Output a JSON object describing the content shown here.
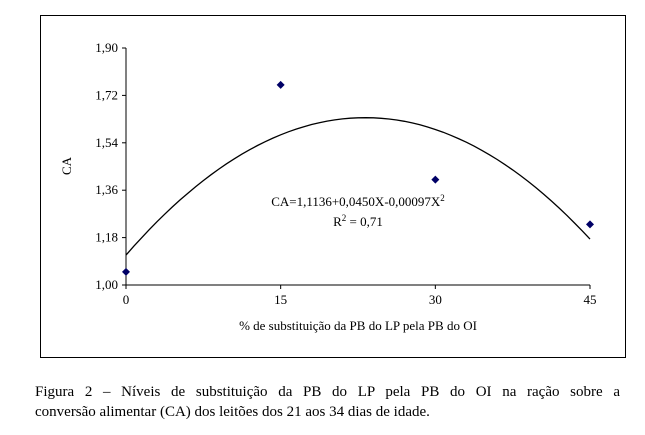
{
  "chart_data": {
    "type": "scatter",
    "x_label": "% de substituição da PB do LP pela PB do OI",
    "y_label": "CA",
    "x": [
      0,
      15,
      30,
      45
    ],
    "series": [
      {
        "color": "#000066",
        "values": [
          1.05,
          1.76,
          1.4,
          1.23
        ]
      }
    ],
    "fit": {
      "coefficients": [
        1.1136,
        0.045,
        -0.00097
      ],
      "color": "#000000"
    },
    "annotations": [
      {
        "parts": [
          "CA=1,1136+0,0450X-0,00097X",
          "2"
        ]
      },
      {
        "parts": [
          "R",
          "2",
          " = 0,71"
        ]
      }
    ],
    "xlim": [
      0,
      45
    ],
    "xticks": [
      0,
      15,
      30,
      45
    ],
    "ylim": [
      1.0,
      1.9
    ],
    "yticks": [
      {
        "value": 1.0,
        "label": "1,00"
      },
      {
        "value": 1.18,
        "label": "1,18"
      },
      {
        "value": 1.36,
        "label": "1,36"
      },
      {
        "value": 1.54,
        "label": "1,54"
      },
      {
        "value": 1.72,
        "label": "1,72"
      },
      {
        "value": 1.9,
        "label": "1,90"
      }
    ]
  },
  "caption": {
    "lines": [
      "Figura 2 – Níveis de substituição da PB do LP pela PB do OI na ração sobre a",
      "conversão alimentar (CA) dos leitões dos 21 aos 34 dias de idade."
    ]
  }
}
